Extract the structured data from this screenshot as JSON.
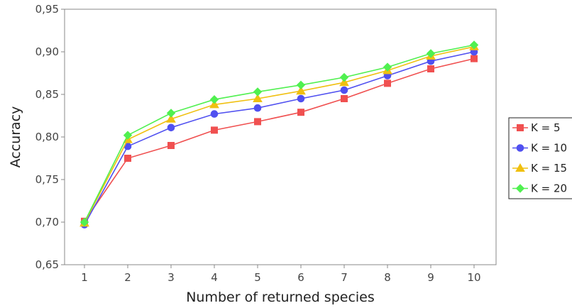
{
  "chart_data": {
    "type": "line",
    "title": "",
    "xlabel": "Number of returned species",
    "ylabel": "Accuracy",
    "categories": [
      "1",
      "2",
      "3",
      "4",
      "5",
      "6",
      "7",
      "8",
      "9",
      "10"
    ],
    "x": [
      1,
      2,
      3,
      4,
      5,
      6,
      7,
      8,
      9,
      10
    ],
    "ylim": [
      0.65,
      0.95
    ],
    "y_ticks": [
      0.65,
      0.7,
      0.75,
      0.8,
      0.85,
      0.9,
      0.95
    ],
    "y_tick_labels": [
      "0,65",
      "0,70",
      "0,75",
      "0,80",
      "0,85",
      "0,90",
      "0,95"
    ],
    "grid": false,
    "legend_position": "right",
    "series": [
      {
        "name": "K = 5",
        "color": "#f05050",
        "marker": "square",
        "values": [
          0.701,
          0.775,
          0.79,
          0.808,
          0.818,
          0.829,
          0.845,
          0.863,
          0.88,
          0.892
        ]
      },
      {
        "name": "K = 10",
        "color": "#5050f0",
        "marker": "circle",
        "values": [
          0.697,
          0.789,
          0.811,
          0.827,
          0.834,
          0.845,
          0.855,
          0.872,
          0.889,
          0.9
        ]
      },
      {
        "name": "K = 15",
        "color": "#f0c010",
        "marker": "triangle",
        "values": [
          0.699,
          0.797,
          0.821,
          0.838,
          0.845,
          0.854,
          0.864,
          0.878,
          0.895,
          0.906
        ]
      },
      {
        "name": "K = 20",
        "color": "#50f050",
        "marker": "diamond",
        "values": [
          0.7,
          0.802,
          0.828,
          0.844,
          0.853,
          0.861,
          0.87,
          0.882,
          0.898,
          0.908
        ]
      }
    ]
  }
}
